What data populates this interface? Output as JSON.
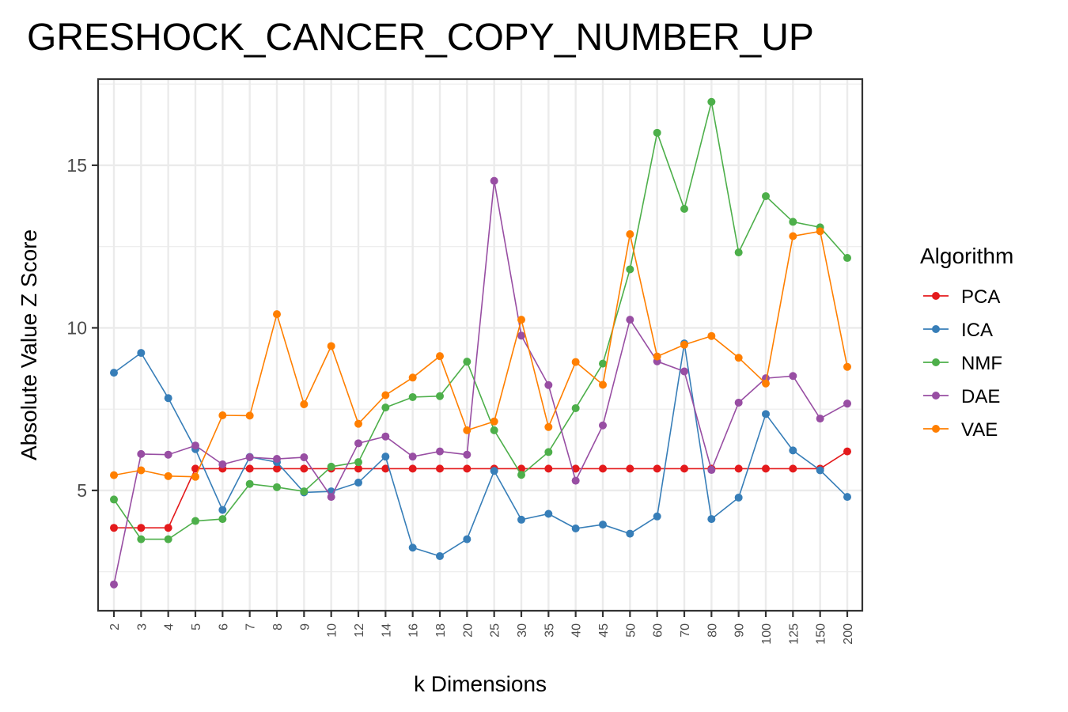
{
  "chart_data": {
    "type": "line",
    "title": "GRESHOCK_CANCER_COPY_NUMBER_UP",
    "xlabel": "k Dimensions",
    "ylabel": "Absolute Value Z Score",
    "categories": [
      "2",
      "3",
      "4",
      "5",
      "6",
      "7",
      "8",
      "9",
      "10",
      "12",
      "14",
      "16",
      "18",
      "20",
      "25",
      "30",
      "35",
      "40",
      "45",
      "50",
      "60",
      "70",
      "80",
      "90",
      "100",
      "125",
      "150",
      "200"
    ],
    "ylim": [
      1.3,
      17.65
    ],
    "yticks": [
      5,
      10,
      15
    ],
    "grid": true,
    "legend": {
      "title": "Algorithm",
      "position": "right"
    },
    "series": [
      {
        "name": "PCA",
        "color": "#e41a1c",
        "values": [
          3.85,
          3.85,
          3.85,
          5.67,
          5.67,
          5.67,
          5.67,
          5.67,
          5.67,
          5.67,
          5.67,
          5.67,
          5.67,
          5.67,
          5.67,
          5.67,
          5.67,
          5.67,
          5.67,
          5.67,
          5.67,
          5.67,
          5.67,
          5.67,
          5.67,
          5.67,
          5.67,
          6.2
        ]
      },
      {
        "name": "ICA",
        "color": "#377eb8",
        "values": [
          8.62,
          9.23,
          7.84,
          6.27,
          4.4,
          6.03,
          5.87,
          4.94,
          4.97,
          5.24,
          6.04,
          3.24,
          2.98,
          3.5,
          5.6,
          4.1,
          4.28,
          3.83,
          3.95,
          3.67,
          4.2,
          9.52,
          4.12,
          4.78,
          7.35,
          6.23,
          5.62,
          4.8
        ]
      },
      {
        "name": "NMF",
        "color": "#4daf4a",
        "values": [
          4.72,
          3.5,
          3.5,
          4.06,
          4.12,
          5.2,
          5.1,
          4.97,
          5.73,
          5.87,
          7.55,
          7.87,
          7.9,
          8.96,
          6.85,
          5.48,
          6.18,
          7.53,
          8.9,
          11.8,
          16.0,
          13.66,
          16.95,
          12.32,
          14.05,
          13.26,
          13.09,
          12.15
        ]
      },
      {
        "name": "DAE",
        "color": "#984ea3",
        "values": [
          2.11,
          6.12,
          6.1,
          6.38,
          5.8,
          6.02,
          5.97,
          6.02,
          4.8,
          6.45,
          6.66,
          6.04,
          6.2,
          6.1,
          14.52,
          9.76,
          8.24,
          5.3,
          7.0,
          10.25,
          8.97,
          8.66,
          5.63,
          7.7,
          8.45,
          8.52,
          7.21,
          7.67
        ]
      },
      {
        "name": "VAE",
        "color": "#ff7f00",
        "values": [
          5.47,
          5.62,
          5.44,
          5.42,
          7.31,
          7.3,
          10.42,
          7.65,
          9.44,
          7.05,
          7.93,
          8.47,
          9.13,
          6.85,
          7.12,
          10.25,
          6.95,
          8.95,
          8.25,
          12.88,
          9.12,
          9.48,
          9.75,
          9.08,
          8.29,
          12.82,
          12.97,
          8.8
        ]
      }
    ]
  }
}
